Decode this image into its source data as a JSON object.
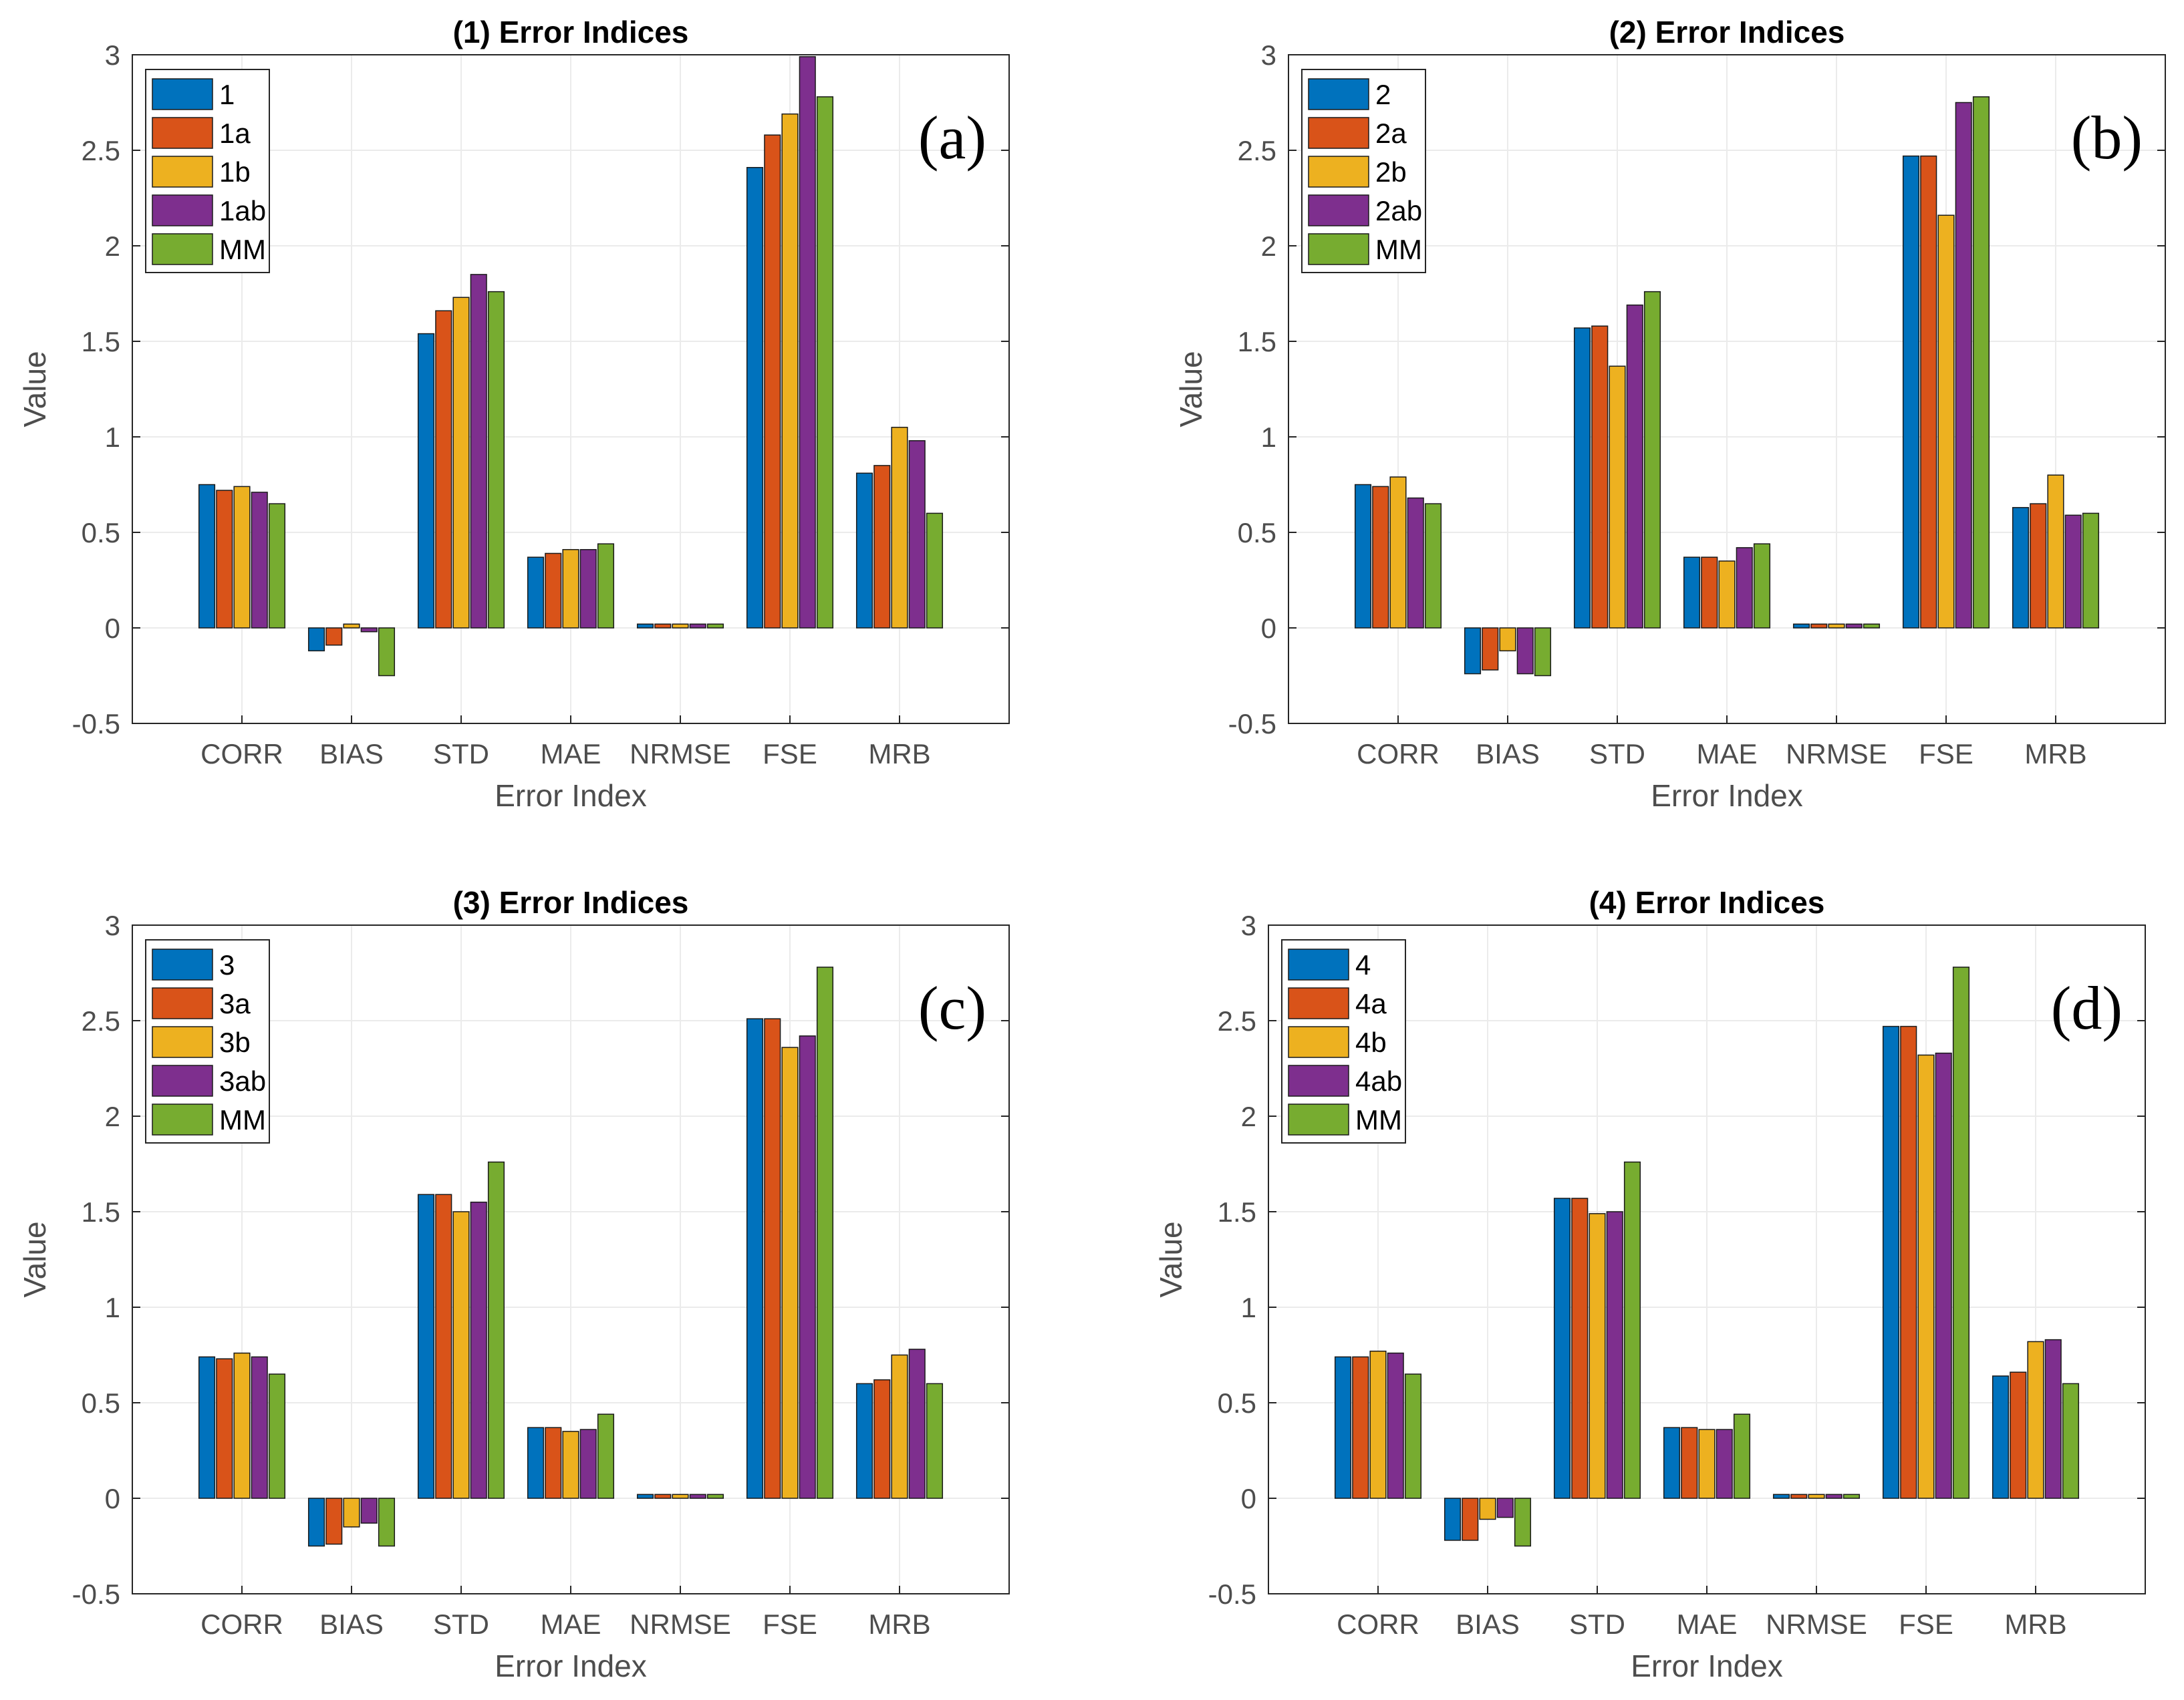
{
  "colors": {
    "series": [
      "#0072BD",
      "#D95319",
      "#EDB120",
      "#7E2F8E",
      "#77AC30"
    ],
    "axis": "#262626",
    "tick_text": "#4d4d4d",
    "grid": "#ebebeb",
    "background": "#ffffff"
  },
  "chart_data": [
    {
      "type": "bar",
      "title": "(1) Error Indices",
      "panel_label": "(a)",
      "xlabel": "Error Index",
      "ylabel": "Value",
      "ylim": [
        -0.5,
        3
      ],
      "yticks": [
        "-0.5",
        "0",
        "0.5",
        "1",
        "1.5",
        "2",
        "2.5",
        "3"
      ],
      "categories": [
        "CORR",
        "BIAS",
        "STD",
        "MAE",
        "NRMSE",
        "FSE",
        "MRB"
      ],
      "legend_position": "top-left",
      "grid": true,
      "series": [
        {
          "name": "1",
          "values": [
            0.75,
            -0.12,
            1.54,
            0.37,
            0.02,
            2.41,
            0.81
          ]
        },
        {
          "name": "1a",
          "values": [
            0.72,
            -0.09,
            1.66,
            0.39,
            0.02,
            2.58,
            0.85
          ]
        },
        {
          "name": "1b",
          "values": [
            0.74,
            0.02,
            1.73,
            0.41,
            0.02,
            2.69,
            1.05
          ]
        },
        {
          "name": "1ab",
          "values": [
            0.71,
            -0.02,
            1.85,
            0.41,
            0.02,
            2.99,
            0.98
          ]
        },
        {
          "name": "MM",
          "values": [
            0.65,
            -0.25,
            1.76,
            0.44,
            0.02,
            2.78,
            0.6
          ]
        }
      ]
    },
    {
      "type": "bar",
      "title": "(2) Error Indices",
      "panel_label": "(b)",
      "xlabel": "Error Index",
      "ylabel": "Value",
      "ylim": [
        -0.5,
        3
      ],
      "yticks": [
        "-0.5",
        "0",
        "0.5",
        "1",
        "1.5",
        "2",
        "2.5",
        "3"
      ],
      "categories": [
        "CORR",
        "BIAS",
        "STD",
        "MAE",
        "NRMSE",
        "FSE",
        "MRB"
      ],
      "legend_position": "top-left",
      "grid": true,
      "series": [
        {
          "name": "2",
          "values": [
            0.75,
            -0.24,
            1.57,
            0.37,
            0.02,
            2.47,
            0.63
          ]
        },
        {
          "name": "2a",
          "values": [
            0.74,
            -0.22,
            1.58,
            0.37,
            0.02,
            2.47,
            0.65
          ]
        },
        {
          "name": "2b",
          "values": [
            0.79,
            -0.12,
            1.37,
            0.35,
            0.02,
            2.16,
            0.8
          ]
        },
        {
          "name": "2ab",
          "values": [
            0.68,
            -0.24,
            1.69,
            0.42,
            0.02,
            2.75,
            0.59
          ]
        },
        {
          "name": "MM",
          "values": [
            0.65,
            -0.25,
            1.76,
            0.44,
            0.02,
            2.78,
            0.6
          ]
        }
      ]
    },
    {
      "type": "bar",
      "title": "(3) Error Indices",
      "panel_label": "(c)",
      "xlabel": "Error Index",
      "ylabel": "Value",
      "ylim": [
        -0.5,
        3
      ],
      "yticks": [
        "-0.5",
        "0",
        "0.5",
        "1",
        "1.5",
        "2",
        "2.5",
        "3"
      ],
      "categories": [
        "CORR",
        "BIAS",
        "STD",
        "MAE",
        "NRMSE",
        "FSE",
        "MRB"
      ],
      "legend_position": "top-left",
      "grid": true,
      "series": [
        {
          "name": "3",
          "values": [
            0.74,
            -0.25,
            1.59,
            0.37,
            0.02,
            2.51,
            0.6
          ]
        },
        {
          "name": "3a",
          "values": [
            0.73,
            -0.24,
            1.59,
            0.37,
            0.02,
            2.51,
            0.62
          ]
        },
        {
          "name": "3b",
          "values": [
            0.76,
            -0.15,
            1.5,
            0.35,
            0.02,
            2.36,
            0.75
          ]
        },
        {
          "name": "3ab",
          "values": [
            0.74,
            -0.13,
            1.55,
            0.36,
            0.02,
            2.42,
            0.78
          ]
        },
        {
          "name": "MM",
          "values": [
            0.65,
            -0.25,
            1.76,
            0.44,
            0.02,
            2.78,
            0.6
          ]
        }
      ]
    },
    {
      "type": "bar",
      "title": "(4) Error Indices",
      "panel_label": "(d)",
      "xlabel": "Error Index",
      "ylabel": "Value",
      "ylim": [
        -0.5,
        3
      ],
      "yticks": [
        "-0.5",
        "0",
        "0.5",
        "1",
        "1.5",
        "2",
        "2.5",
        "3"
      ],
      "categories": [
        "CORR",
        "BIAS",
        "STD",
        "MAE",
        "NRMSE",
        "FSE",
        "MRB"
      ],
      "legend_position": "top-left",
      "grid": true,
      "series": [
        {
          "name": "4",
          "values": [
            0.74,
            -0.22,
            1.57,
            0.37,
            0.02,
            2.47,
            0.64
          ]
        },
        {
          "name": "4a",
          "values": [
            0.74,
            -0.22,
            1.57,
            0.37,
            0.02,
            2.47,
            0.66
          ]
        },
        {
          "name": "4b",
          "values": [
            0.77,
            -0.11,
            1.49,
            0.36,
            0.02,
            2.32,
            0.82
          ]
        },
        {
          "name": "4ab",
          "values": [
            0.76,
            -0.1,
            1.5,
            0.36,
            0.02,
            2.33,
            0.83
          ]
        },
        {
          "name": "MM",
          "values": [
            0.65,
            -0.25,
            1.76,
            0.44,
            0.02,
            2.78,
            0.6
          ]
        }
      ]
    }
  ]
}
